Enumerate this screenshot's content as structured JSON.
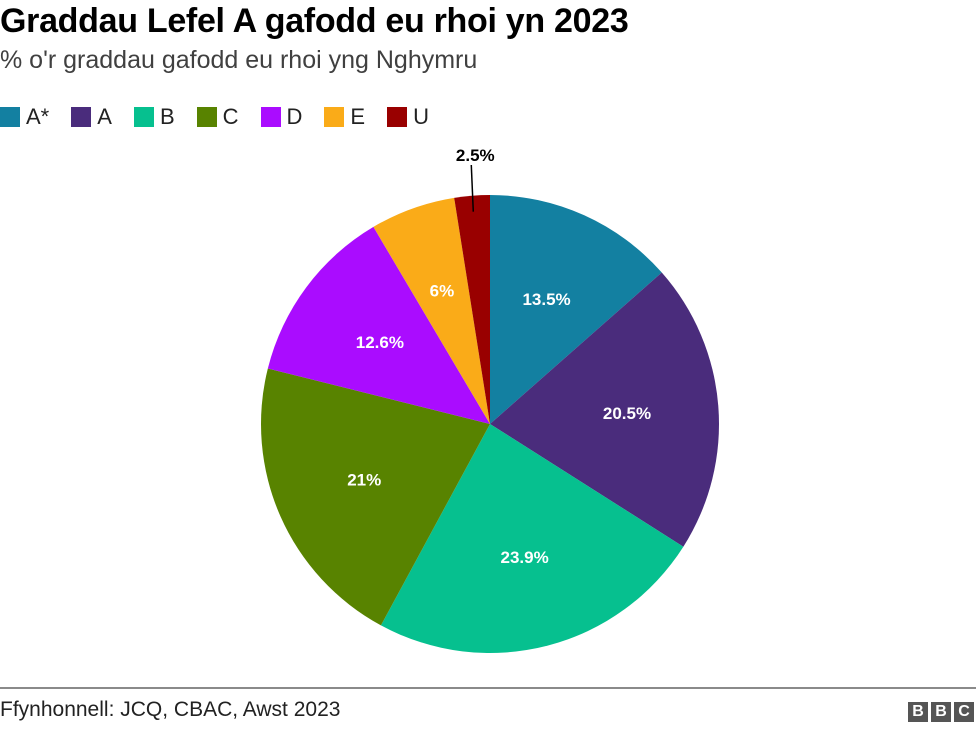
{
  "header": {
    "title": "Graddau Lefel A gafodd eu rhoi yn 2023",
    "subtitle": "% o'r graddau gafodd eu rhoi yng Nghymru"
  },
  "legend": [
    {
      "label": "A*",
      "color": "#1380a1"
    },
    {
      "label": "A",
      "color": "#4a2c7c"
    },
    {
      "label": "B",
      "color": "#06c08f"
    },
    {
      "label": "C",
      "color": "#588300"
    },
    {
      "label": "D",
      "color": "#aa0cff"
    },
    {
      "label": "E",
      "color": "#faab18"
    },
    {
      "label": "U",
      "color": "#990000"
    }
  ],
  "chart_data": {
    "type": "pie",
    "title": "Graddau Lefel A gafodd eu rhoi yn 2023",
    "subtitle": "% o'r graddau gafodd eu rhoi yng Nghymru",
    "categories": [
      "A*",
      "A",
      "B",
      "C",
      "D",
      "E",
      "U"
    ],
    "values": [
      13.5,
      20.5,
      23.9,
      21,
      12.6,
      6,
      2.5
    ],
    "data_labels": [
      "13.5%",
      "20.5%",
      "23.9%",
      "21%",
      "12.6%",
      "6%",
      "2.5%"
    ],
    "colors": [
      "#1380a1",
      "#4a2c7c",
      "#06c08f",
      "#588300",
      "#aa0cff",
      "#faab18",
      "#990000"
    ],
    "start_angle": "12 o'clock, clockwise",
    "legend_position": "top-left"
  },
  "footer": {
    "source": "Ffynhonnell: JCQ, CBAC, Awst 2023",
    "logo": [
      "B",
      "B",
      "C"
    ]
  }
}
